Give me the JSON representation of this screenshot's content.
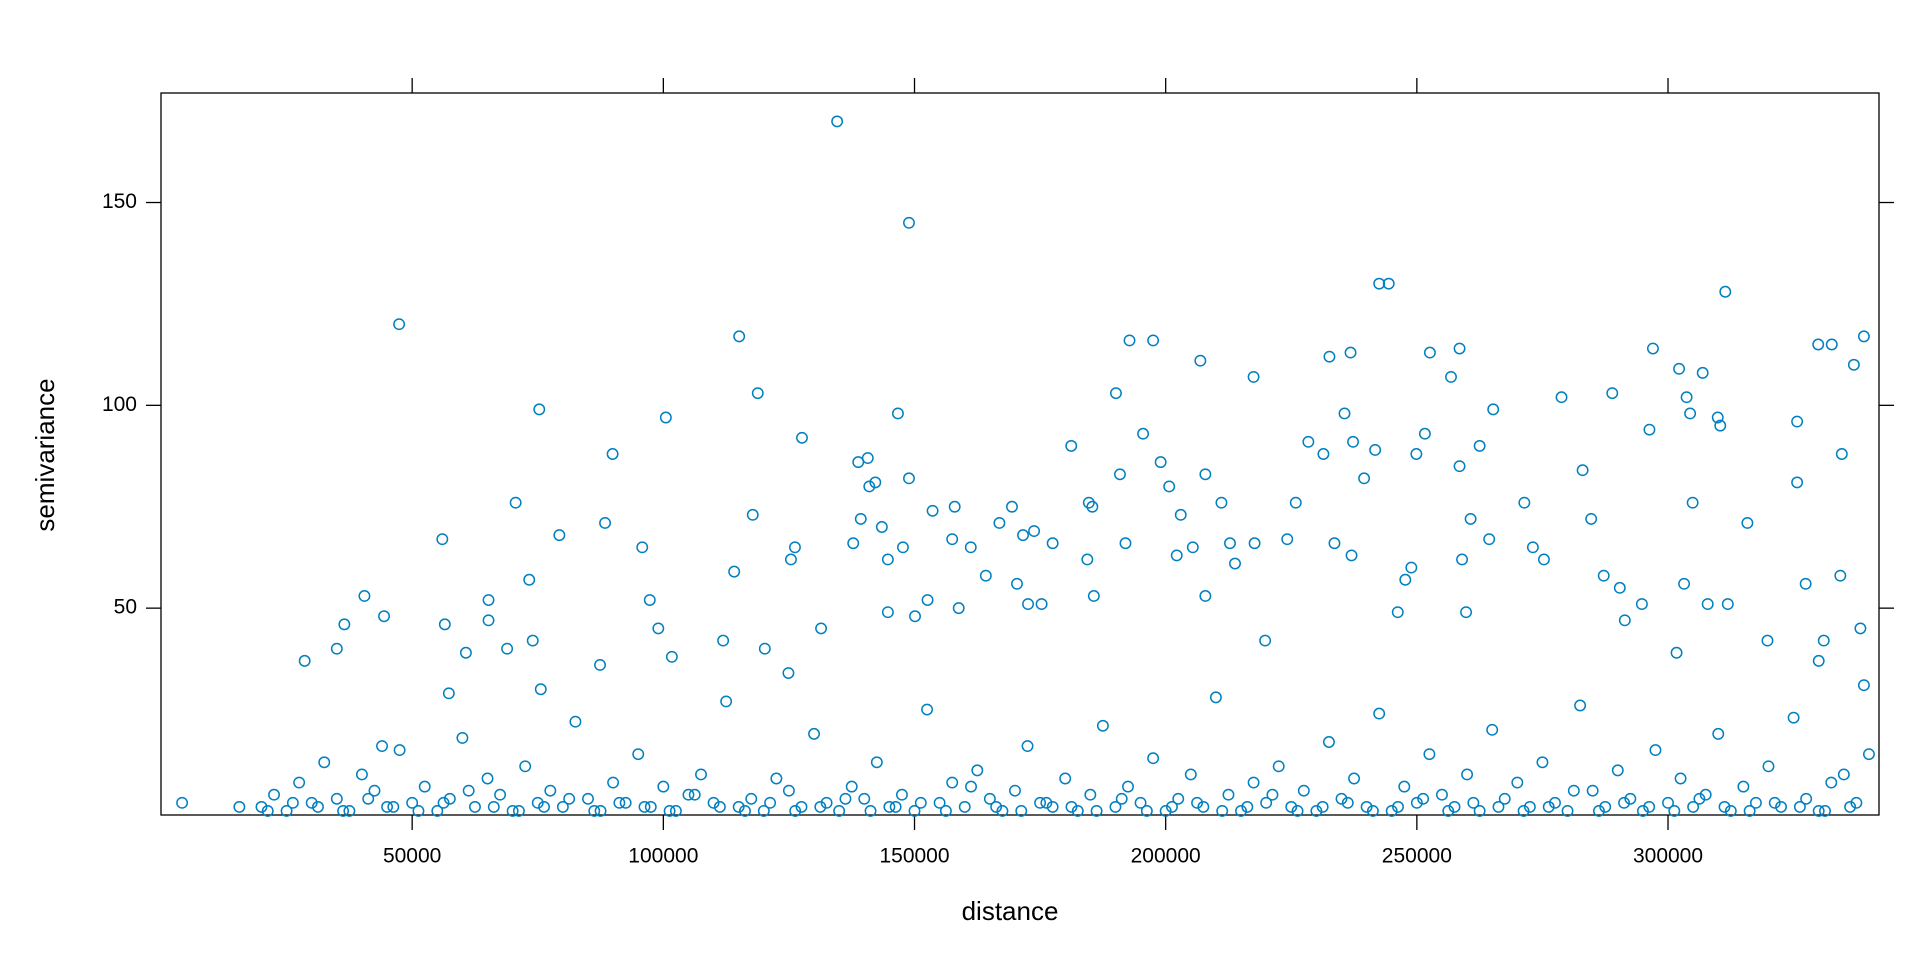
{
  "chart_data": {
    "type": "scatter",
    "xlabel": "distance",
    "ylabel": "semivariance",
    "color": "#0080c0",
    "xlim": [
      0,
      342000
    ],
    "ylim": [
      -1,
      177
    ],
    "xticks": [
      50000,
      100000,
      150000,
      200000,
      250000,
      300000
    ],
    "yticks": [
      50,
      100,
      150
    ],
    "x": [
      4200,
      15600,
      28600,
      35000,
      36500,
      40500,
      44000,
      44400,
      47400,
      56000,
      56500,
      57300,
      60700,
      65200,
      65200,
      68900,
      70600,
      73300,
      74000,
      75300,
      75600,
      79300,
      87400,
      88400,
      89900,
      95800,
      97300,
      100500,
      99000,
      101700,
      111900,
      114100,
      115100,
      117800,
      118800,
      120200,
      124900,
      125400,
      126200,
      127600,
      131400,
      134600,
      137800,
      138800,
      140700,
      139300,
      141000,
      142200,
      143500,
      144700,
      144700,
      146700,
      147700,
      148900,
      148900,
      150100,
      152600,
      153600,
      157500,
      158000,
      158800,
      161200,
      164200,
      166900,
      169400,
      170400,
      171600,
      172600,
      173800,
      175300,
      177500,
      181200,
      184700,
      185400,
      185700,
      184400,
      190100,
      190900,
      192000,
      192800,
      195500,
      197500,
      199000,
      200700,
      202200,
      203000,
      205400,
      206900,
      207900,
      207900,
      211100,
      212800,
      213800,
      217500,
      217700,
      219800,
      224200,
      225900,
      228400,
      231400,
      232600,
      233600,
      235600,
      236800,
      237000,
      237300,
      239500,
      241700,
      242500,
      244400,
      246200,
      247700,
      248900,
      249900,
      251600,
      252600,
      256800,
      258500,
      258500,
      259800,
      259000,
      260700,
      262500,
      265200,
      264400,
      271400,
      273100,
      275300,
      278800,
      283000,
      284700,
      287200,
      288900,
      290400,
      291400,
      294800,
      296300,
      297000,
      301700,
      302200,
      303200,
      303700,
      304400,
      304900,
      306900,
      307900,
      309900,
      310400,
      311400,
      311900,
      315800,
      319800,
      325700,
      325700,
      327400,
      329900,
      332600,
      334600,
      334300,
      337000,
      339000,
      338300,
      339000,
      330000,
      331000,
      20000,
      22500,
      25000,
      27500,
      30000,
      32500,
      35000,
      37500,
      40000,
      42500,
      45000,
      47500,
      50000,
      52500,
      55000,
      57500,
      60000,
      62500,
      65000,
      67500,
      70000,
      72500,
      75000,
      77500,
      80000,
      82500,
      85000,
      87500,
      90000,
      92500,
      95000,
      97500,
      100000,
      102500,
      105000,
      107500,
      110000,
      112500,
      115000,
      117500,
      120000,
      122500,
      125000,
      127500,
      130000,
      132500,
      135000,
      137500,
      140000,
      142500,
      145000,
      147500,
      150000,
      152500,
      155000,
      157500,
      160000,
      162500,
      165000,
      167500,
      170000,
      172500,
      175000,
      177500,
      180000,
      182500,
      185000,
      187500,
      190000,
      192500,
      195000,
      197500,
      200000,
      202500,
      205000,
      207500,
      210000,
      212500,
      215000,
      217500,
      220000,
      222500,
      225000,
      227500,
      230000,
      232500,
      235000,
      237500,
      240000,
      242500,
      245000,
      247500,
      250000,
      252500,
      255000,
      257500,
      260000,
      262500,
      265000,
      267500,
      270000,
      272500,
      275000,
      277500,
      280000,
      282500,
      285000,
      287500,
      290000,
      292500,
      295000,
      297500,
      300000,
      302500,
      305000,
      307500,
      310000,
      312500,
      315000,
      317500,
      320000,
      322500,
      325000,
      327500,
      330000,
      332500,
      335000,
      337500,
      340000,
      21250,
      26250,
      31250,
      36250,
      41250,
      46250,
      51250,
      56250,
      61250,
      66250,
      71250,
      76250,
      81250,
      86250,
      91250,
      96250,
      101250,
      106250,
      111250,
      116250,
      121250,
      126250,
      131250,
      136250,
      141250,
      146250,
      151250,
      156250,
      161250,
      166250,
      171250,
      176250,
      181250,
      186250,
      191250,
      196250,
      201250,
      206250,
      211250,
      216250,
      221250,
      226250,
      231250,
      236250,
      241250,
      246250,
      251250,
      256250,
      261250,
      266250,
      271250,
      276250,
      281250,
      286250,
      291250,
      296250,
      301250,
      306250,
      311250,
      316250,
      321250,
      326250,
      331250,
      336250
    ],
    "values": [
      2,
      1,
      37,
      40,
      46,
      53,
      16,
      48,
      120,
      67,
      46,
      29,
      39,
      52,
      47,
      40,
      76,
      57,
      42,
      99,
      30,
      68,
      36,
      71,
      88,
      65,
      52,
      97,
      45,
      38,
      42,
      59,
      117,
      73,
      103,
      40,
      34,
      62,
      65,
      92,
      45,
      170,
      66,
      86,
      87,
      72,
      80,
      81,
      70,
      62,
      49,
      98,
      65,
      145,
      82,
      48,
      52,
      74,
      67,
      75,
      50,
      65,
      58,
      71,
      75,
      56,
      68,
      51,
      69,
      51,
      66,
      90,
      76,
      75,
      53,
      62,
      103,
      83,
      66,
      116,
      93,
      116,
      86,
      80,
      63,
      73,
      65,
      111,
      83,
      53,
      76,
      66,
      61,
      107,
      66,
      42,
      67,
      76,
      91,
      88,
      112,
      66,
      98,
      113,
      63,
      91,
      82,
      89,
      130,
      130,
      49,
      57,
      60,
      88,
      93,
      113,
      107,
      114,
      85,
      49,
      62,
      72,
      90,
      99,
      67,
      76,
      65,
      62,
      102,
      84,
      72,
      58,
      103,
      55,
      47,
      51,
      94,
      114,
      39,
      109,
      56,
      102,
      98,
      76,
      108,
      51,
      97,
      95,
      128,
      51,
      71,
      42,
      96,
      81,
      56,
      115,
      115,
      88,
      58,
      110,
      117,
      45,
      31,
      37,
      42,
      1,
      4,
      0,
      7,
      2,
      12,
      3,
      0,
      9,
      5,
      1,
      15,
      2,
      6,
      0,
      3,
      18,
      1,
      8,
      4,
      0,
      11,
      2,
      5,
      1,
      22,
      3,
      0,
      7,
      2,
      14,
      1,
      6,
      0,
      4,
      9,
      2,
      27,
      1,
      3,
      0,
      8,
      5,
      1,
      19,
      2,
      0,
      6,
      3,
      12,
      1,
      4,
      0,
      25,
      2,
      7,
      1,
      10,
      3,
      0,
      5,
      16,
      2,
      1,
      8,
      0,
      4,
      21,
      1,
      6,
      2,
      13,
      0,
      3,
      9,
      1,
      28,
      4,
      0,
      7,
      2,
      11,
      1,
      5,
      0,
      17,
      3,
      8,
      1,
      24,
      0,
      6,
      2,
      14,
      4,
      1,
      9,
      0,
      20,
      3,
      7,
      1,
      12,
      2,
      0,
      26,
      5,
      1,
      10,
      3,
      0,
      15,
      2,
      8,
      1,
      4,
      19,
      0,
      6,
      2,
      11,
      1,
      23,
      3,
      0,
      7,
      9,
      2,
      14,
      0,
      2,
      1,
      0,
      3,
      1,
      0,
      2,
      5,
      1,
      0,
      1,
      3,
      0,
      2,
      1,
      0,
      4,
      1,
      0,
      2,
      0,
      1,
      3,
      0,
      1,
      2,
      0,
      6,
      1,
      0,
      2,
      1,
      0,
      3,
      0,
      1,
      2,
      0,
      1,
      4,
      0,
      1,
      2,
      0,
      1,
      3,
      0,
      2,
      1,
      0,
      1,
      5,
      0,
      2,
      1,
      0,
      3,
      1,
      0,
      2,
      1,
      0,
      1
    ]
  }
}
